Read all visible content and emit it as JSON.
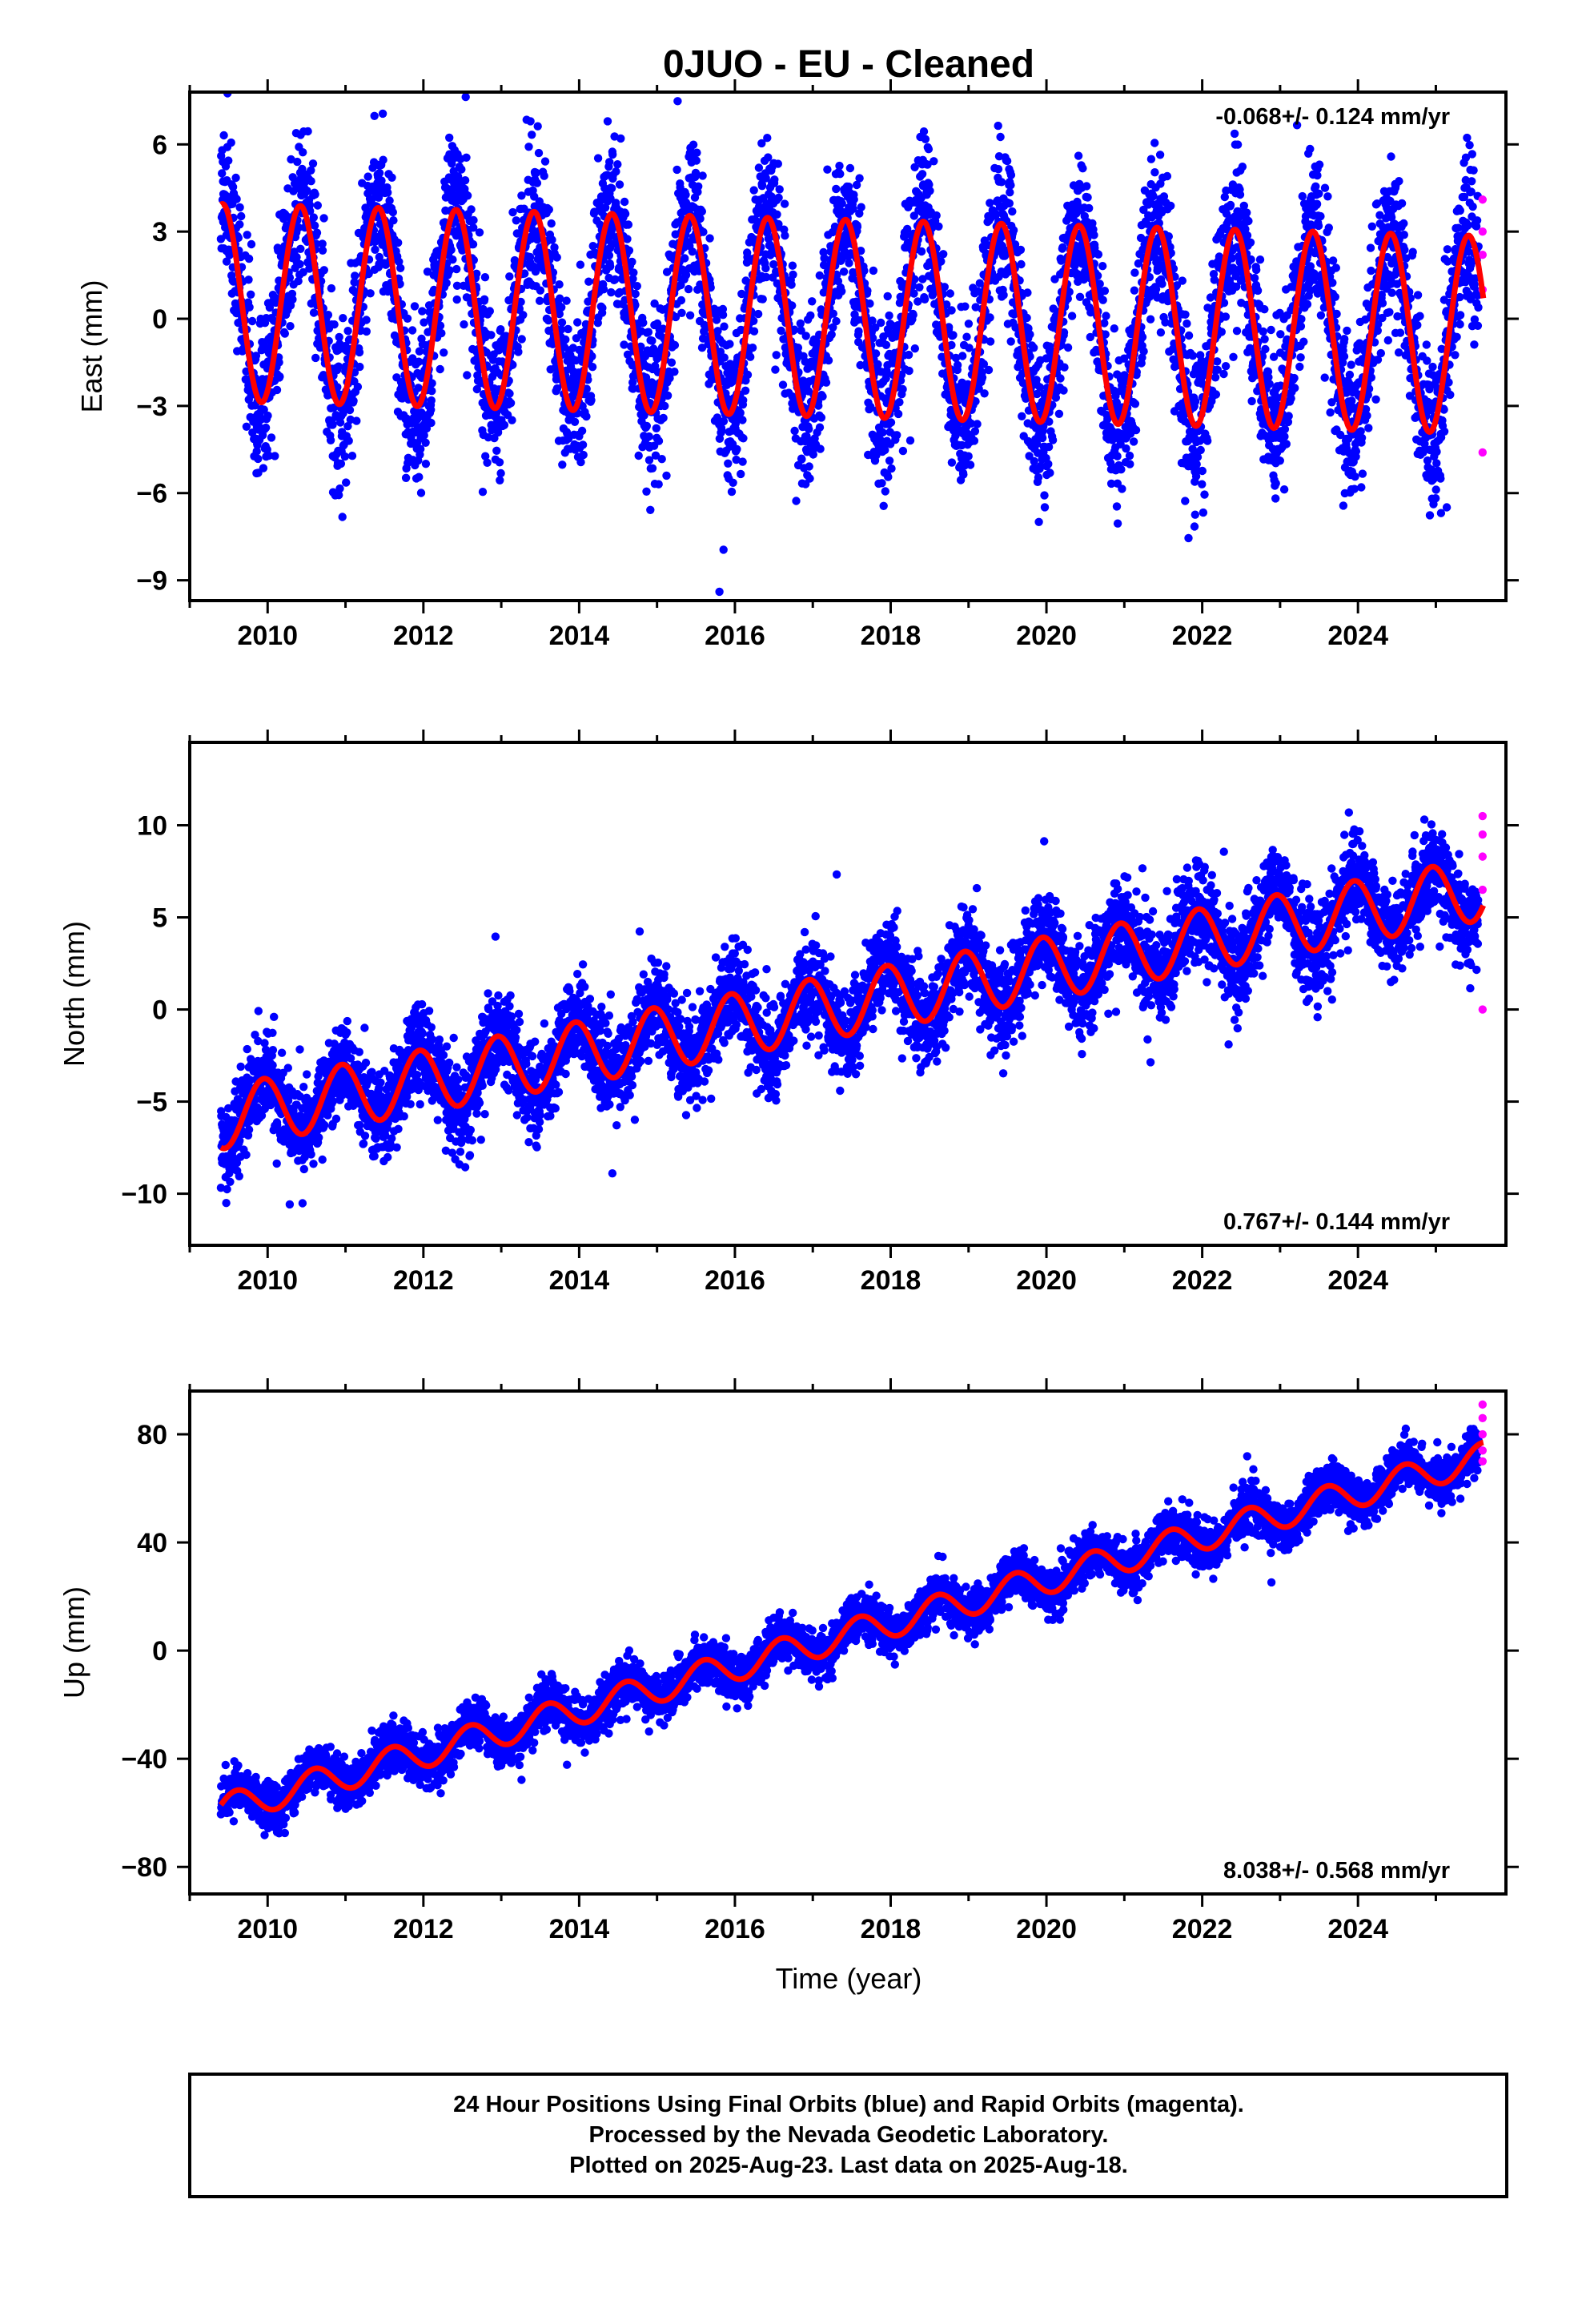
{
  "chart_data": {
    "title": "0JUO  - EU - Cleaned",
    "type": "scatter",
    "xlabel": "Time (year)",
    "xlim": [
      2009.0,
      2025.9
    ],
    "x_ticks": [
      2010,
      2012,
      2014,
      2016,
      2018,
      2020,
      2022,
      2024
    ],
    "series_legend": {
      "final_orbits": {
        "name": "Final Orbits (blue)",
        "color": "#0000ff"
      },
      "rapid_orbits": {
        "name": "Rapid Orbits (magenta)",
        "color": "#ff00ff"
      },
      "model": {
        "color": "#ff0000"
      }
    },
    "panels": [
      {
        "id": "east",
        "ylabel": "East (mm)",
        "ylim": [
          -9.7,
          7.8
        ],
        "y_ticks": [
          6,
          3,
          0,
          -3,
          -6,
          -9
        ],
        "rate_label": "-0.068+/- 0.124 mm/yr",
        "rate_position": "top-right",
        "model": {
          "trend_mm_per_yr": -0.068,
          "offset_at_2009_5": 0.55,
          "annual_amp": 3.4,
          "annual_peak_phase": 0.42,
          "noise_sd": 1.35
        },
        "data_start": 2009.4,
        "data_end": 2025.55,
        "rapid_points": [
          {
            "x": 2025.6,
            "y": 4.1
          },
          {
            "x": 2025.6,
            "y": 3.0
          },
          {
            "x": 2025.6,
            "y": 2.2
          },
          {
            "x": 2025.6,
            "y": 1.0
          },
          {
            "x": 2025.6,
            "y": -4.6
          }
        ]
      },
      {
        "id": "north",
        "ylabel": "North (mm)",
        "ylim": [
          -12.8,
          14.5
        ],
        "y_ticks": [
          10,
          5,
          0,
          -5,
          -10
        ],
        "rate_label": "0.767+/- 0.144 mm/yr",
        "rate_position": "bottom-right",
        "model": {
          "trend_mm_per_yr": 0.767,
          "offset_at_2009_5": -5.8,
          "annual_amp": 1.7,
          "annual_peak_phase": 0.95,
          "noise_sd": 1.2
        },
        "data_start": 2009.4,
        "data_end": 2025.55,
        "rapid_points": [
          {
            "x": 2025.6,
            "y": 10.5
          },
          {
            "x": 2025.6,
            "y": 9.5
          },
          {
            "x": 2025.6,
            "y": 8.3
          },
          {
            "x": 2025.6,
            "y": 6.5
          },
          {
            "x": 2025.6,
            "y": 0.0
          }
        ]
      },
      {
        "id": "up",
        "ylabel": "Up (mm)",
        "ylim": [
          -90,
          96
        ],
        "y_ticks": [
          80,
          40,
          0,
          -40,
          -80
        ],
        "rate_label": "8.038+/- 0.568 mm/yr",
        "rate_position": "bottom-right",
        "model": {
          "trend_mm_per_yr": 8.038,
          "offset_at_2009_5": -58.0,
          "annual_amp": 5.5,
          "annual_peak_phase": 0.6,
          "noise_sd": 4.2
        },
        "data_start": 2009.4,
        "data_end": 2025.55,
        "rapid_points": [
          {
            "x": 2025.6,
            "y": 91
          },
          {
            "x": 2025.6,
            "y": 86
          },
          {
            "x": 2025.6,
            "y": 80
          },
          {
            "x": 2025.6,
            "y": 74
          },
          {
            "x": 2025.6,
            "y": 70
          }
        ]
      }
    ],
    "footer_lines": [
      "24 Hour Positions Using Final Orbits (blue) and Rapid Orbits (magenta).",
      "Processed by the Nevada Geodetic Laboratory.",
      "Plotted on 2025-Aug-23. Last data on 2025-Aug-18."
    ]
  }
}
